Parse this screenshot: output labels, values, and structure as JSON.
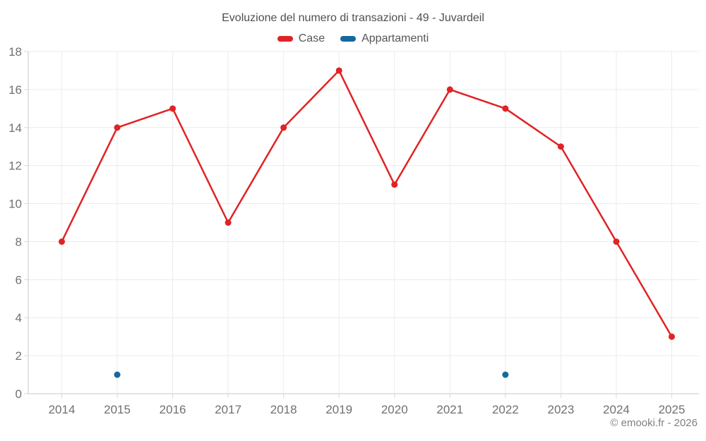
{
  "title": "Evoluzione del numero di transazioni - 49 - Juvardeil",
  "footer": "© emooki.fr - 2026",
  "legend": [
    {
      "label": "Case",
      "color": "#e02326"
    },
    {
      "label": "Appartamenti",
      "color": "#16699f"
    }
  ],
  "chart_data": {
    "type": "line",
    "title": "Evoluzione del numero di transazioni - 49 - Juvardeil",
    "xlabel": "",
    "ylabel": "",
    "categories": [
      "2014",
      "2015",
      "2016",
      "2017",
      "2018",
      "2019",
      "2020",
      "2021",
      "2022",
      "2023",
      "2024",
      "2025"
    ],
    "series": [
      {
        "name": "Case",
        "color": "#e02326",
        "show_line": true,
        "values": [
          8,
          14,
          15,
          9,
          14,
          17,
          11,
          16,
          15,
          13,
          8,
          3
        ]
      },
      {
        "name": "Appartamenti",
        "color": "#16699f",
        "show_line": true,
        "values": [
          null,
          1,
          null,
          null,
          null,
          null,
          null,
          null,
          1,
          null,
          null,
          null
        ]
      }
    ],
    "ylim": [
      0,
      18
    ],
    "ytick_step": 2,
    "grid": true,
    "legend_position": "top",
    "colors": {
      "gridline": "#ececec",
      "axis_line": "#c9c9c9",
      "tick": "#d9d9d9",
      "axis_text": "#707070"
    }
  }
}
